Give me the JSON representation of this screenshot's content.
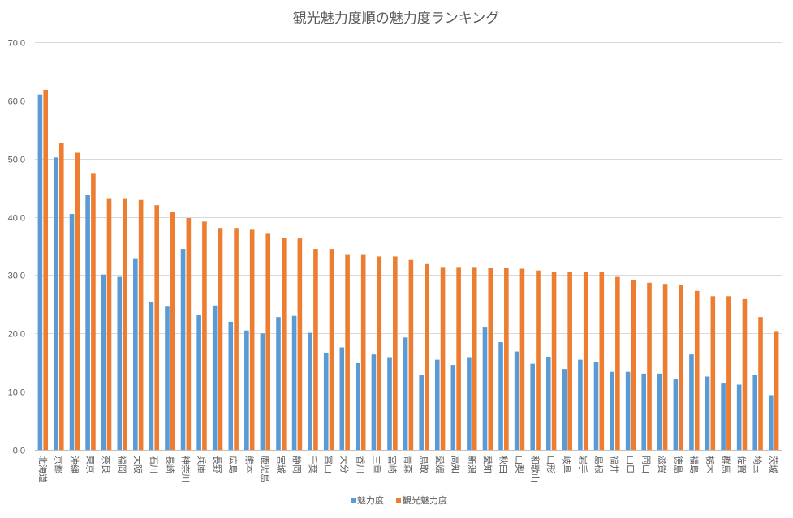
{
  "chart_data": {
    "type": "bar",
    "title": "観光魅力度順の魅力度ランキング",
    "xlabel": "",
    "ylabel": "",
    "ylim": [
      0,
      70
    ],
    "yticks": [
      "0.0",
      "10.0",
      "20.0",
      "30.0",
      "40.0",
      "50.0",
      "60.0",
      "70.0"
    ],
    "grid": true,
    "legend_position": "bottom",
    "categories": [
      "北海道",
      "京都",
      "沖縄",
      "東京",
      "奈良",
      "福岡",
      "大阪",
      "石川",
      "長崎",
      "神奈川",
      "兵庫",
      "長野",
      "広島",
      "熊本",
      "鹿児島",
      "宮城",
      "静岡",
      "千葉",
      "富山",
      "大分",
      "香川",
      "三重",
      "宮崎",
      "青森",
      "鳥取",
      "愛媛",
      "高知",
      "新潟",
      "愛知",
      "秋田",
      "山梨",
      "和歌山",
      "山形",
      "岐阜",
      "岩手",
      "島根",
      "福井",
      "山口",
      "岡山",
      "滋賀",
      "徳島",
      "福島",
      "栃木",
      "群馬",
      "佐賀",
      "埼玉",
      "茨城"
    ],
    "series": [
      {
        "name": "魅力度",
        "color": "#5B9BD5",
        "values": [
          61.0,
          50.2,
          40.5,
          43.8,
          30.1,
          29.7,
          32.9,
          25.4,
          24.6,
          34.5,
          23.2,
          24.8,
          22.0,
          20.5,
          20.0,
          22.8,
          23.0,
          20.1,
          16.6,
          17.6,
          14.9,
          16.4,
          15.8,
          19.3,
          12.8,
          15.5,
          14.6,
          15.8,
          21.0,
          18.5,
          16.9,
          14.8,
          15.9,
          13.9,
          15.5,
          15.1,
          13.4,
          13.4,
          13.1,
          13.1,
          12.1,
          16.4,
          12.6,
          11.4,
          11.2,
          12.9,
          9.4
        ]
      },
      {
        "name": "観光魅力度",
        "color": "#ED7D31",
        "values": [
          61.8,
          52.7,
          51.0,
          47.4,
          43.2,
          43.2,
          42.9,
          42.0,
          40.9,
          39.8,
          39.2,
          38.1,
          38.1,
          37.8,
          37.1,
          36.4,
          36.3,
          34.5,
          34.5,
          33.6,
          33.6,
          33.2,
          33.2,
          32.6,
          31.9,
          31.4,
          31.4,
          31.4,
          31.3,
          31.2,
          31.1,
          30.8,
          30.6,
          30.6,
          30.5,
          30.5,
          29.7,
          29.1,
          28.7,
          28.5,
          28.3,
          27.3,
          26.4,
          26.4,
          25.9,
          22.8,
          20.4
        ]
      }
    ]
  }
}
